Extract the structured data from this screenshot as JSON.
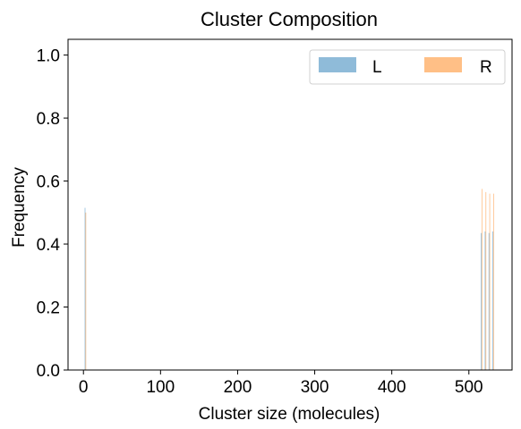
{
  "chart_data": {
    "type": "bar",
    "title": "Cluster Composition",
    "xlabel": "Cluster size (molecules)",
    "ylabel": "Frequency",
    "xlim": [
      -20,
      556
    ],
    "ylim": [
      0,
      1.05
    ],
    "xticks": [
      0,
      100,
      200,
      300,
      400,
      500
    ],
    "yticks": [
      0.0,
      0.2,
      0.4,
      0.6,
      0.8,
      1.0
    ],
    "xtick_labels": [
      "0",
      "100",
      "200",
      "300",
      "400",
      "500"
    ],
    "ytick_labels": [
      "0.0",
      "0.2",
      "0.4",
      "0.6",
      "0.8",
      "1.0"
    ],
    "grid": false,
    "legend": {
      "placement": "top-right",
      "columns": 2
    },
    "bar_width": 0.8,
    "series": [
      {
        "name": "L",
        "color": "#1f77b4",
        "opacity": 0.5,
        "x": [
          2,
          516,
          521,
          526,
          531
        ],
        "values": [
          0.515,
          0.435,
          0.44,
          0.435,
          0.44
        ]
      },
      {
        "name": "R",
        "color": "#ff7f0e",
        "opacity": 0.5,
        "x": [
          3,
          517,
          522,
          527,
          532
        ],
        "values": [
          0.5,
          0.575,
          0.565,
          0.56,
          0.56
        ]
      }
    ]
  }
}
